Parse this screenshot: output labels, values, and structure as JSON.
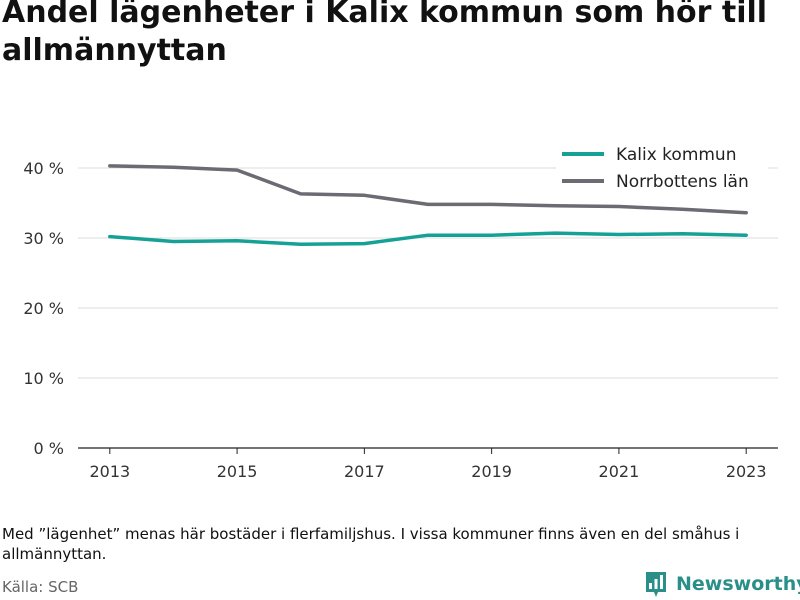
{
  "title": "Andel lägenheter i Kalix kommun som hör till allmännyttan",
  "note": "Med ”lägenhet” menas här bostäder i flerfamiljshus. I vissa kommuner finns även en del småhus i allmännyttan.",
  "source": "Källa: SCB",
  "brand": {
    "name": "Newsworthy",
    "logo_icon": "bar-chart-icon",
    "color": "#2a8f88"
  },
  "chart_data": {
    "type": "line",
    "x": [
      2013,
      2014,
      2015,
      2016,
      2017,
      2018,
      2019,
      2020,
      2021,
      2022,
      2023
    ],
    "x_ticks": [
      "2013",
      "2015",
      "2017",
      "2019",
      "2021",
      "2023"
    ],
    "y_ticks": [
      "0 %",
      "10 %",
      "20 %",
      "30 %",
      "40 %"
    ],
    "ylim": [
      0,
      40
    ],
    "grid": true,
    "legend_position": "top-right",
    "series": [
      {
        "name": "Kalix kommun",
        "color": "#16a196",
        "values": [
          30.2,
          29.5,
          29.6,
          29.1,
          29.2,
          30.4,
          30.4,
          30.7,
          30.5,
          30.6,
          30.4
        ]
      },
      {
        "name": "Norrbottens län",
        "color": "#6b6b73",
        "values": [
          40.3,
          40.1,
          39.7,
          36.3,
          36.1,
          34.8,
          34.8,
          34.6,
          34.5,
          34.1,
          33.6
        ]
      }
    ]
  }
}
